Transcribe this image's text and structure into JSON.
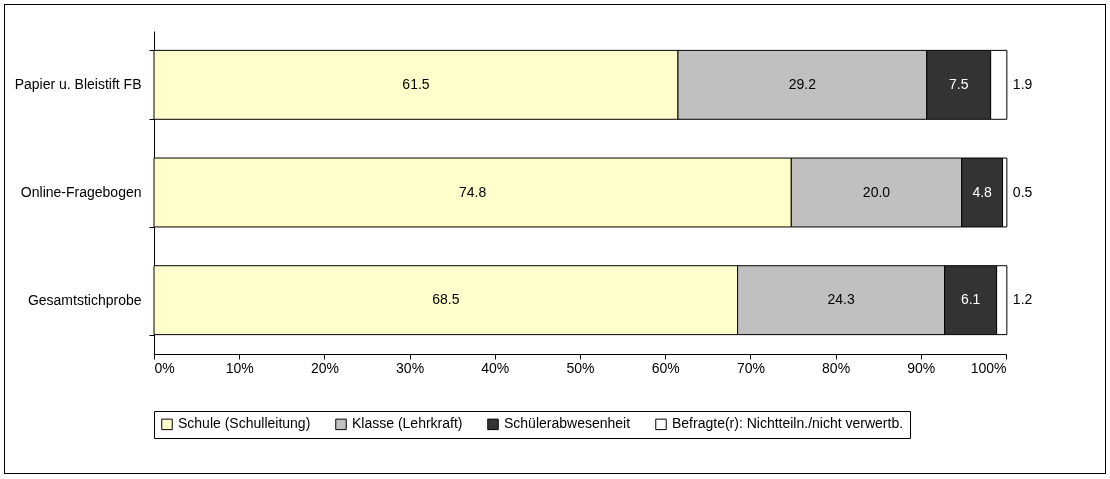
{
  "chart_data": {
    "type": "bar",
    "orientation": "horizontal",
    "stacked": true,
    "legend": "bottom",
    "grid": false,
    "categories": [
      "Papier u. Bleistift FB",
      "Online-Fragebogen",
      "Gesamtstichprobe"
    ],
    "series": [
      {
        "name": "Schule (Schulleitung)",
        "color": "#ffffcc",
        "values": [
          61.5,
          74.8,
          68.5
        ],
        "value_labels": [
          "61.5",
          "74.8",
          "68.5"
        ]
      },
      {
        "name": "Klasse (Lehrkraft)",
        "color": "#c0c0c0",
        "values": [
          29.2,
          20.0,
          24.3
        ],
        "value_labels": [
          "29.2",
          "20.0",
          "24.3"
        ]
      },
      {
        "name": "Schülerabwesenheit",
        "color": "#333333",
        "values": [
          7.5,
          4.8,
          6.1
        ],
        "value_labels": [
          "7.5",
          "4.8",
          "6.1"
        ]
      },
      {
        "name": "Befragte(r): Nichtteiln./nicht verwertb.",
        "color": "#ffffff",
        "values": [
          1.9,
          0.5,
          1.2
        ],
        "value_labels": [
          "1.9",
          "0.5",
          "1.2"
        ]
      }
    ],
    "xlim": [
      0,
      100
    ],
    "xticks": [
      {
        "value": 0,
        "label": "0%"
      },
      {
        "value": 10,
        "label": "10%"
      },
      {
        "value": 20,
        "label": "20%"
      },
      {
        "value": 30,
        "label": "30%"
      },
      {
        "value": 40,
        "label": "40%"
      },
      {
        "value": 50,
        "label": "50%"
      },
      {
        "value": 60,
        "label": "60%"
      },
      {
        "value": 70,
        "label": "70%"
      },
      {
        "value": 80,
        "label": "80%"
      },
      {
        "value": 90,
        "label": "90%"
      },
      {
        "value": 100,
        "label": "100%"
      }
    ]
  }
}
